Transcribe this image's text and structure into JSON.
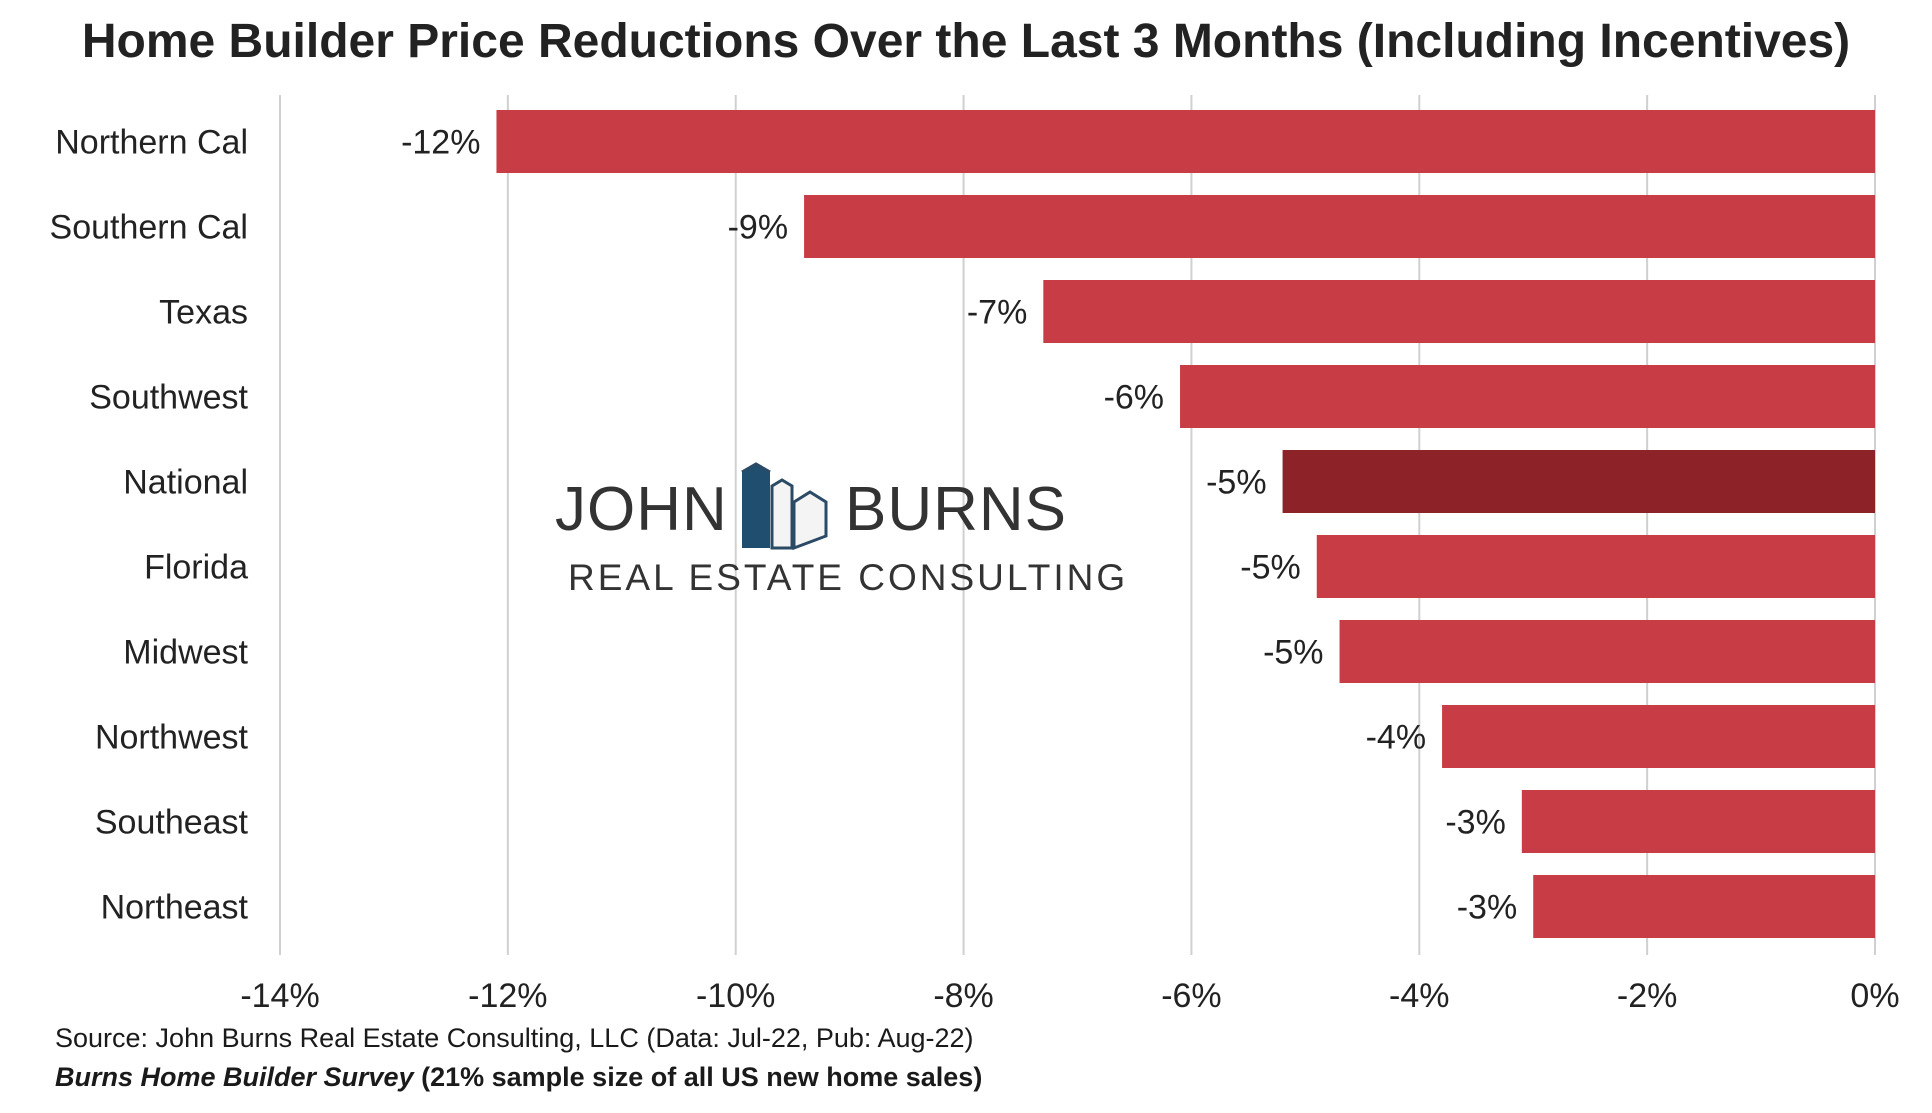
{
  "chart_data": {
    "type": "bar",
    "orientation": "horizontal",
    "title": "Home Builder Price Reductions Over the Last 3 Months (Including Incentives)",
    "categories": [
      "Northern Cal",
      "Southern Cal",
      "Texas",
      "Southwest",
      "National",
      "Florida",
      "Midwest",
      "Northwest",
      "Southeast",
      "Northeast"
    ],
    "values": [
      -12.1,
      -9.4,
      -7.3,
      -6.1,
      -5.2,
      -4.9,
      -4.7,
      -3.8,
      -3.1,
      -3.0
    ],
    "data_labels": [
      "-12%",
      "-9%",
      "-7%",
      "-6%",
      "-5%",
      "-5%",
      "-5%",
      "-4%",
      "-3%",
      "-3%"
    ],
    "highlight": "National",
    "xlim": [
      -14,
      0
    ],
    "x_ticks": [
      -14,
      -12,
      -10,
      -8,
      -6,
      -4,
      -2,
      0
    ],
    "x_tick_labels": [
      "-14%",
      "-12%",
      "-10%",
      "-8%",
      "-6%",
      "-4%",
      "-2%",
      "0%"
    ],
    "xlabel": "",
    "ylabel": "",
    "grid": true,
    "colors": {
      "bar": "#c83c45",
      "highlight": "#8e2229",
      "grid": "#d0d0d0"
    }
  },
  "watermark": {
    "line1_left": "JOHN",
    "line1_right": "BURNS",
    "line2": "REAL ESTATE CONSULTING",
    "logo_icon": "house-logo-icon"
  },
  "footer": {
    "source": "Source: John Burns Real Estate Consulting, LLC (Data: Jul-22, Pub: Aug-22)",
    "survey_name": "Burns Home Builder Survey",
    "survey_note": " (21% sample size of all US new home sales)"
  }
}
